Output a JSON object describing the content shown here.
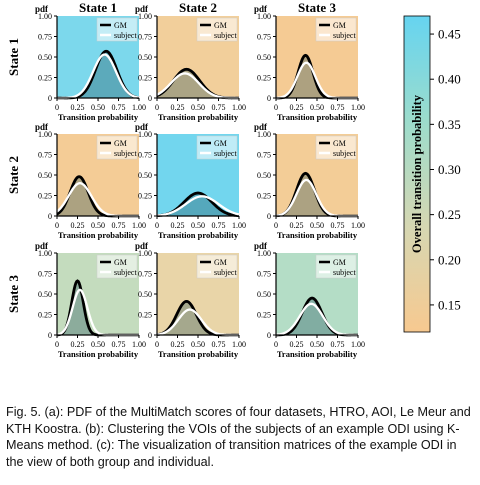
{
  "chart_data": {
    "type": "area",
    "col_titles": [
      "State 1",
      "State 2",
      "State 3"
    ],
    "row_titles": [
      "State 1",
      "State 2",
      "State 3"
    ],
    "ylabel": "pdf",
    "xlabel": "Transition probability",
    "xticks": [
      "0",
      "0.25",
      "0.50",
      "0.75",
      "1.00"
    ],
    "yticks": [
      "0",
      "0.25",
      "0.50",
      "0.75",
      "1.00"
    ],
    "xlim": [
      0,
      1
    ],
    "ylim": [
      0,
      1
    ],
    "legend": {
      "gm": "GM",
      "subject": "subject",
      "position": "top-right"
    },
    "series_colors": {
      "gm": "#000000",
      "subject": "#ffffff"
    },
    "panels": [
      {
        "row": 1,
        "col": 1,
        "value": 0.45,
        "bg": "#7cd8ec",
        "gm": {
          "mu": 0.6,
          "sigma": 0.13,
          "peak": 0.57
        },
        "subject": {
          "mu": 0.58,
          "sigma": 0.14,
          "peak": 0.53
        }
      },
      {
        "row": 1,
        "col": 2,
        "value": 0.17,
        "bg": "#f2cf9b",
        "gm": {
          "mu": 0.36,
          "sigma": 0.16,
          "peak": 0.35
        },
        "subject": {
          "mu": 0.34,
          "sigma": 0.17,
          "peak": 0.3
        }
      },
      {
        "row": 1,
        "col": 3,
        "value": 0.14,
        "bg": "#f5cb94",
        "gm": {
          "mu": 0.36,
          "sigma": 0.09,
          "peak": 0.52
        },
        "subject": {
          "mu": 0.37,
          "sigma": 0.11,
          "peak": 0.43
        }
      },
      {
        "row": 2,
        "col": 1,
        "value": 0.15,
        "bg": "#f4cc96",
        "gm": {
          "mu": 0.27,
          "sigma": 0.11,
          "peak": 0.48
        },
        "subject": {
          "mu": 0.28,
          "sigma": 0.14,
          "peak": 0.4
        }
      },
      {
        "row": 2,
        "col": 2,
        "value": 0.46,
        "bg": "#72d6ee",
        "gm": {
          "mu": 0.5,
          "sigma": 0.17,
          "peak": 0.28
        },
        "subject": {
          "mu": 0.55,
          "sigma": 0.2,
          "peak": 0.24
        }
      },
      {
        "row": 2,
        "col": 3,
        "value": 0.15,
        "bg": "#f3cd97",
        "gm": {
          "mu": 0.36,
          "sigma": 0.11,
          "peak": 0.52
        },
        "subject": {
          "mu": 0.37,
          "sigma": 0.12,
          "peak": 0.44
        }
      },
      {
        "row": 3,
        "col": 1,
        "value": 0.27,
        "bg": "#c4dcbe",
        "gm": {
          "mu": 0.25,
          "sigma": 0.07,
          "peak": 0.66
        },
        "subject": {
          "mu": 0.28,
          "sigma": 0.09,
          "peak": 0.55
        }
      },
      {
        "row": 3,
        "col": 2,
        "value": 0.19,
        "bg": "#e9d5a8",
        "gm": {
          "mu": 0.36,
          "sigma": 0.12,
          "peak": 0.41
        },
        "subject": {
          "mu": 0.4,
          "sigma": 0.14,
          "peak": 0.31
        }
      },
      {
        "row": 3,
        "col": 3,
        "value": 0.3,
        "bg": "#b4ddc6",
        "gm": {
          "mu": 0.44,
          "sigma": 0.12,
          "peak": 0.45
        },
        "subject": {
          "mu": 0.43,
          "sigma": 0.14,
          "peak": 0.38
        }
      }
    ],
    "colorbar": {
      "label": "Overall transition probability",
      "ticks": [
        "0.45",
        "0.40",
        "0.35",
        "0.30",
        "0.25",
        "0.20",
        "0.15"
      ],
      "range": [
        0.12,
        0.47
      ],
      "colors": [
        "#f7c990",
        "#d6d7b2",
        "#9cdccc",
        "#66d4f0"
      ]
    }
  },
  "caption": "Fig. 5. (a): PDF of the MultiMatch scores of four datasets, HTRO, AOI, Le Meur and KTH Koostra. (b): Clustering the VOIs of the subjects of an example ODI using K-Means method. (c): The visualization of transition matrices of the example ODI in the view of both group and individual."
}
